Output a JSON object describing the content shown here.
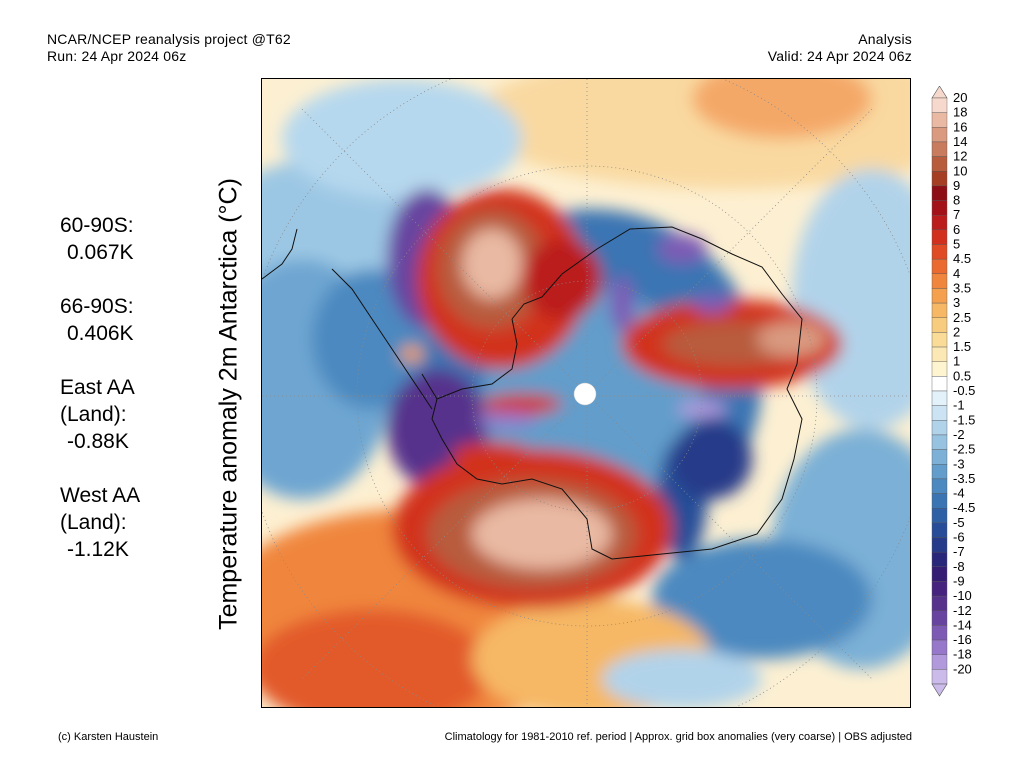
{
  "header": {
    "line1_left": "NCAR/NCEP reanalysis project @T62",
    "line2_left": "Run: 24 Apr 2024 06z",
    "line1_right": "Analysis",
    "line2_right": "Valid: 24 Apr 2024 06z"
  },
  "ylabel": "Temperature anomaly 2m Antarctica (°C)",
  "stats": [
    {
      "label": "60-90S:",
      "value": "0.067K"
    },
    {
      "label": "66-90S:",
      "value": "0.406K"
    },
    {
      "label": "East AA",
      "label2": "(Land):",
      "value": "-0.88K"
    },
    {
      "label": "West AA",
      "label2": "(Land):",
      "value": "-1.12K"
    }
  ],
  "colorbar": {
    "labels": [
      "20",
      "18",
      "16",
      "14",
      "12",
      "10",
      "9",
      "8",
      "7",
      "6",
      "5",
      "4.5",
      "4",
      "3.5",
      "3",
      "2.5",
      "2",
      "1.5",
      "1",
      "0.5",
      "-0.5",
      "-1",
      "-1.5",
      "-2",
      "-2.5",
      "-3",
      "-3.5",
      "-4",
      "-4.5",
      "-5",
      "-6",
      "-7",
      "-8",
      "-9",
      "-10",
      "-12",
      "-14",
      "-16",
      "-18",
      "-20"
    ],
    "colors": [
      "#f6d9cc",
      "#e9b9a3",
      "#d99a80",
      "#c97b5e",
      "#b85c3e",
      "#a63e23",
      "#8e0e16",
      "#a31219",
      "#bb1d1d",
      "#d2301f",
      "#e04a24",
      "#ea6a30",
      "#f0863d",
      "#f4a04f",
      "#f6b865",
      "#f8cc7e",
      "#fadc98",
      "#fce8b4",
      "#fef4d0",
      "#ffffff",
      "#e3f1fa",
      "#cbe3f2",
      "#b1d3ea",
      "#97c2e0",
      "#7cb0d6",
      "#629dcb",
      "#4b89c0",
      "#3a74b3",
      "#2e60a6",
      "#284d98",
      "#263b89",
      "#28277a",
      "#351d74",
      "#46237e",
      "#56328c",
      "#6844a0",
      "#7d5bb5",
      "#9677c9",
      "#b199dc",
      "#cbbbea"
    ]
  },
  "footer": {
    "left": "(c) Karsten Haustein",
    "right": "Climatology for 1981-2010 ref. period | Approx. grid box anomalies (very coarse) | OBS adjusted"
  }
}
